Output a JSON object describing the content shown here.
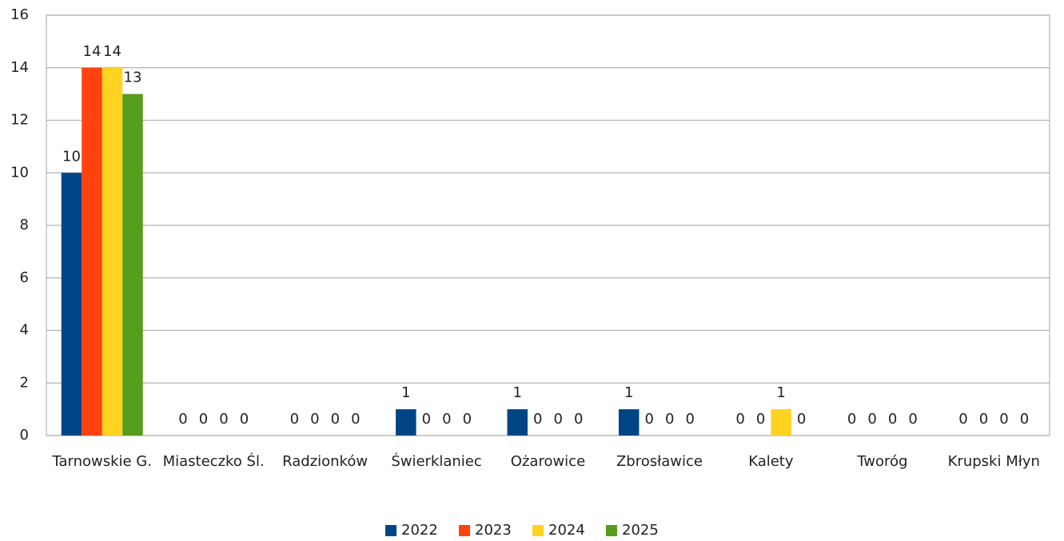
{
  "chart_data": {
    "type": "bar",
    "categories": [
      "Tarnowskie G.",
      "Miasteczko Śl.",
      "Radzionków",
      "Świerklaniec",
      "Ożarowice",
      "Zbrosławice",
      "Kalety",
      "Tworóg",
      "Krupski Młyn"
    ],
    "series": [
      {
        "name": "2022",
        "color": "#004586",
        "values": [
          10,
          0,
          0,
          1,
          1,
          1,
          0,
          0,
          0
        ]
      },
      {
        "name": "2023",
        "color": "#ff420e",
        "values": [
          14,
          0,
          0,
          0,
          0,
          0,
          0,
          0,
          0
        ]
      },
      {
        "name": "2024",
        "color": "#ffd320",
        "values": [
          14,
          0,
          0,
          0,
          0,
          0,
          1,
          0,
          0
        ]
      },
      {
        "name": "2025",
        "color": "#579d1c",
        "values": [
          13,
          0,
          0,
          0,
          0,
          0,
          0,
          0,
          0
        ]
      }
    ],
    "ylim": [
      0,
      16
    ],
    "yticks": [
      0,
      2,
      4,
      6,
      8,
      10,
      12,
      14,
      16
    ],
    "grid": true,
    "legend": "bottom"
  }
}
